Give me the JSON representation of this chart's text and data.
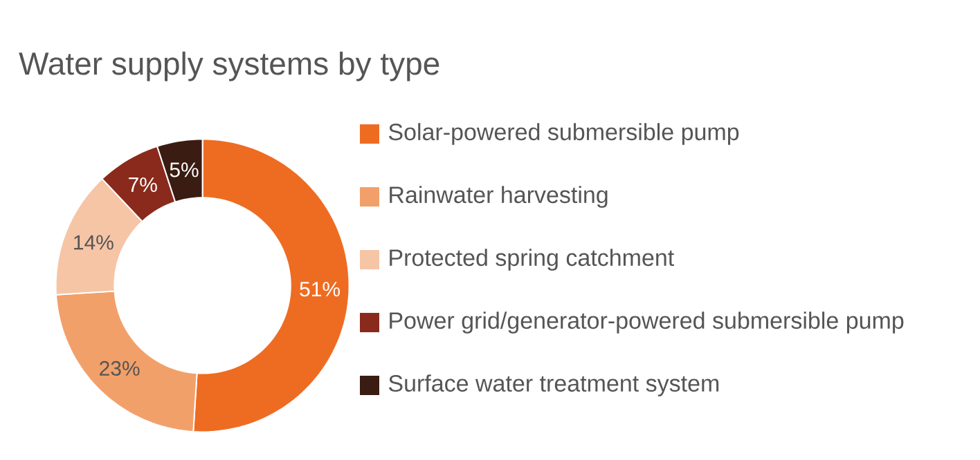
{
  "chart_data": {
    "type": "donut",
    "title": "Water supply systems by type",
    "categories": [
      "Solar-powered submersible pump",
      "Rainwater harvesting",
      "Protected spring catchment",
      "Power grid/generator-powered submersible pump",
      "Surface water treatment system"
    ],
    "values": [
      51,
      23,
      14,
      7,
      5
    ],
    "value_labels": [
      "51%",
      "23%",
      "14%",
      "7%",
      "5%"
    ],
    "colors": [
      "#ee6c22",
      "#f2a06a",
      "#f6c5a6",
      "#8a2a1c",
      "#3b1c12"
    ],
    "legend": "right"
  }
}
